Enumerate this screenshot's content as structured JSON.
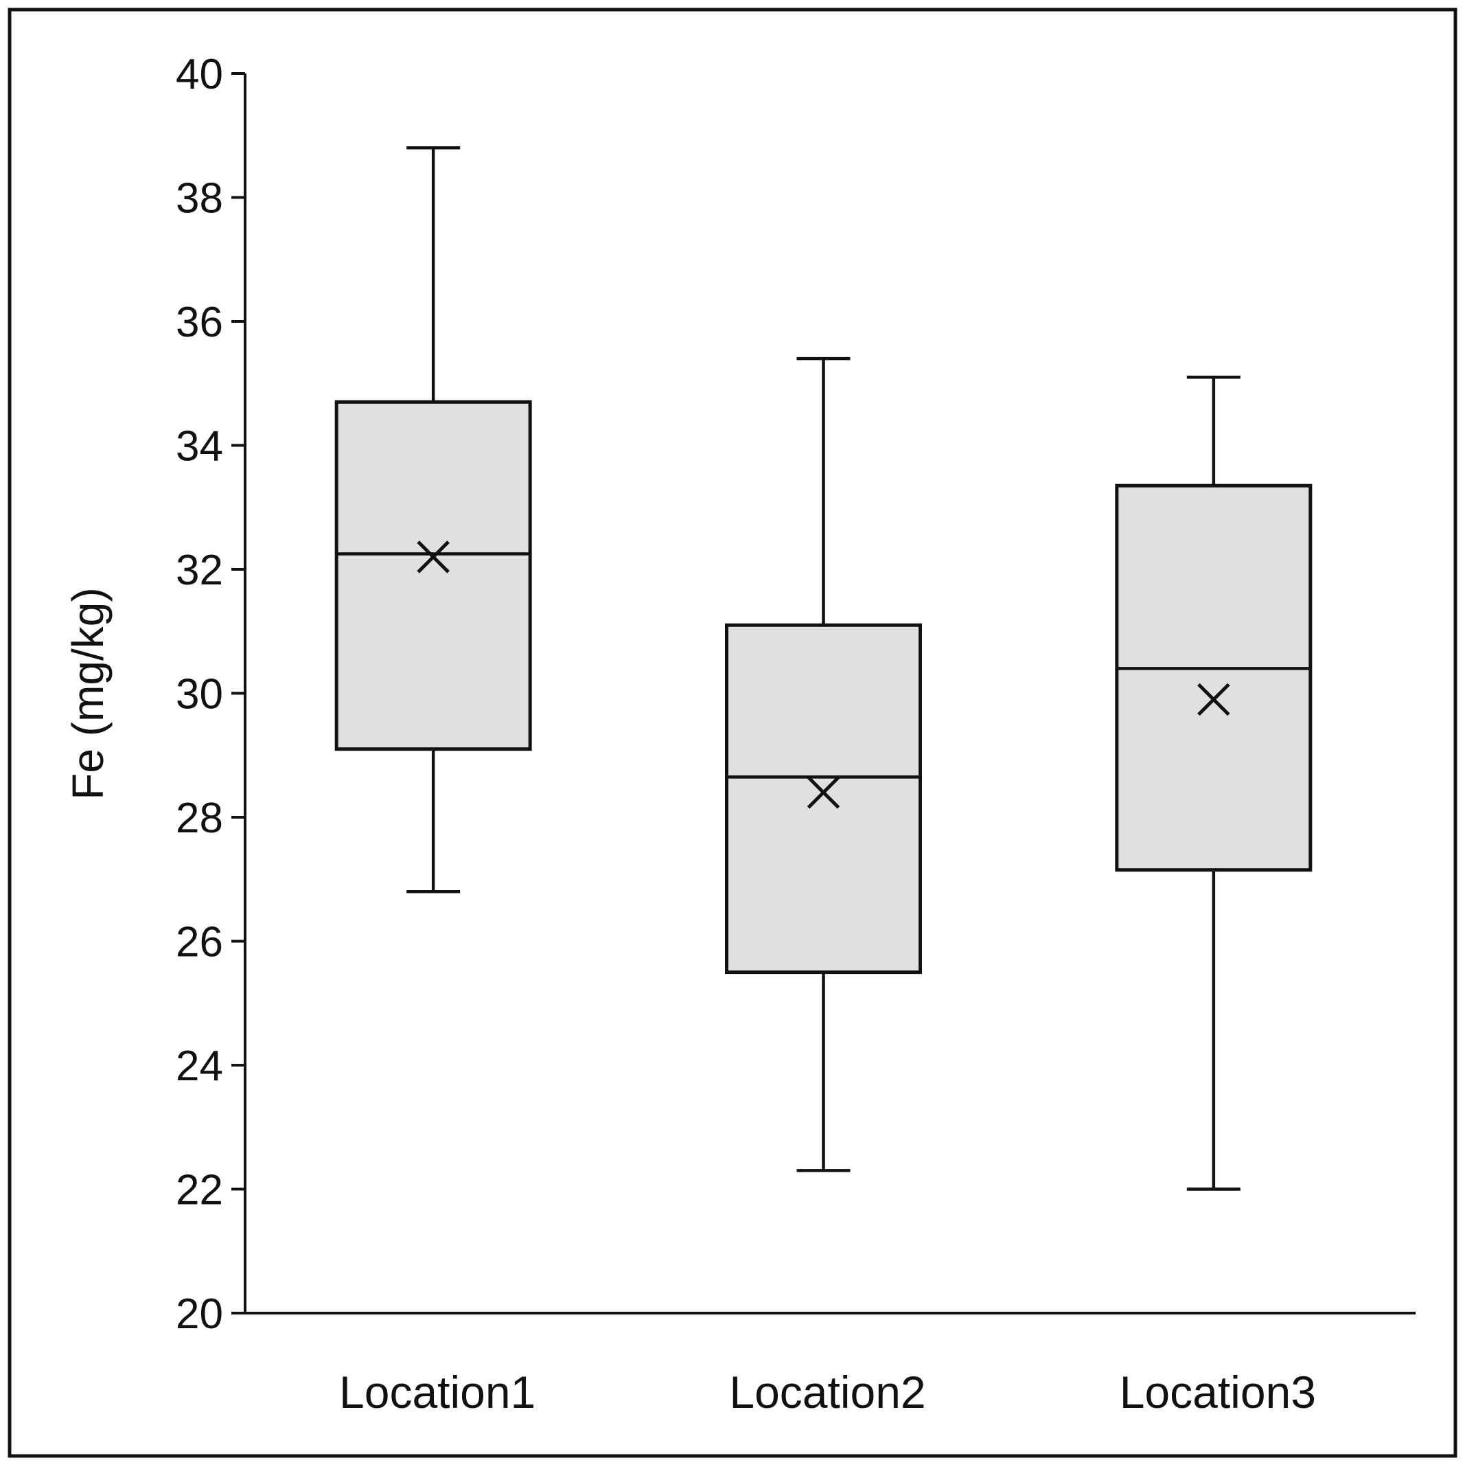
{
  "chart_data": {
    "type": "box",
    "ylabel": "Fe (mg/kg)",
    "xlabel": "",
    "ylim": [
      20,
      40
    ],
    "yticks": [
      "20",
      "22",
      "24",
      "26",
      "28",
      "30",
      "32",
      "34",
      "36",
      "38",
      "40"
    ],
    "grid": false,
    "legend": "none",
    "box_fill": "#e0e0e0",
    "stroke": "#111111",
    "categories": [
      "Location1",
      "Location2",
      "Location3"
    ],
    "boxes": [
      {
        "category": "Location1",
        "whisker_low": 26.8,
        "q1": 29.1,
        "median": 32.25,
        "q3": 34.7,
        "whisker_high": 38.8,
        "mean": 32.2
      },
      {
        "category": "Location2",
        "whisker_low": 22.3,
        "q1": 25.5,
        "median": 28.65,
        "q3": 31.1,
        "whisker_high": 35.4,
        "mean": 28.4
      },
      {
        "category": "Location3",
        "whisker_low": 22.0,
        "q1": 27.15,
        "median": 30.4,
        "q3": 33.35,
        "whisker_high": 35.1,
        "mean": 29.9
      }
    ]
  }
}
